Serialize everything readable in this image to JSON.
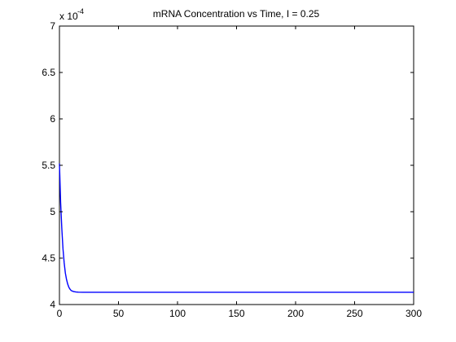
{
  "chart_data": {
    "type": "line",
    "title": "mRNA Concentration vs Time, I = 0.25",
    "xlabel": "",
    "ylabel": "",
    "xlim": [
      0,
      300
    ],
    "ylim": [
      4,
      7
    ],
    "y_multiplier_label": {
      "base": "x 10",
      "exponent": "-4"
    },
    "x_ticks": [
      0,
      50,
      100,
      150,
      200,
      250,
      300
    ],
    "y_ticks": [
      4,
      4.5,
      5,
      5.5,
      6,
      6.5,
      7
    ],
    "x_tick_labels": [
      "0",
      "50",
      "100",
      "150",
      "200",
      "250",
      "300"
    ],
    "y_tick_labels": [
      "4",
      "4.5",
      "5",
      "5.5",
      "6",
      "6.5",
      "7"
    ],
    "grid": false,
    "series": [
      {
        "color": "#0000ff",
        "x": [
          0,
          1,
          2,
          3,
          4,
          5,
          6,
          7,
          8,
          9,
          10,
          12,
          14,
          16,
          20,
          30,
          50,
          100,
          150,
          200,
          250,
          300
        ],
        "y": [
          5.52,
          5.1,
          4.82,
          4.6,
          4.45,
          4.34,
          4.27,
          4.22,
          4.185,
          4.165,
          4.15,
          4.14,
          4.135,
          4.133,
          4.132,
          4.132,
          4.132,
          4.132,
          4.132,
          4.132,
          4.132,
          4.132
        ]
      }
    ]
  }
}
